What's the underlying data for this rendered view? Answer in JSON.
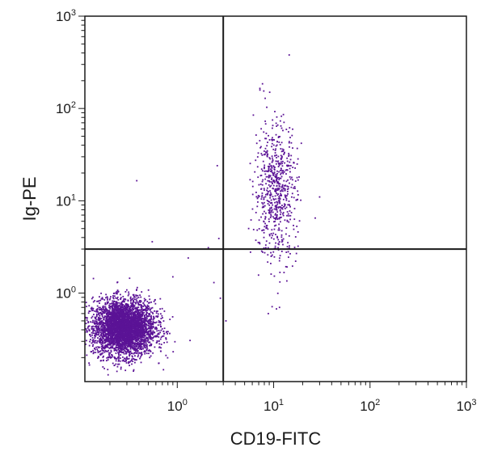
{
  "chart_data": {
    "type": "scatter",
    "title": "",
    "xlabel": "CD19-FITC",
    "ylabel": "Ig-PE",
    "x_scale": "log",
    "y_scale": "log",
    "xlim": [
      0.11,
      1000
    ],
    "ylim": [
      0.11,
      1000
    ],
    "x_ticks": [
      {
        "value": 1,
        "base": "10",
        "exp": "0"
      },
      {
        "value": 10,
        "base": "10",
        "exp": "1"
      },
      {
        "value": 100,
        "base": "10",
        "exp": "2"
      },
      {
        "value": 1000,
        "base": "10",
        "exp": "3"
      }
    ],
    "y_ticks": [
      {
        "value": 1,
        "base": "10",
        "exp": "0"
      },
      {
        "value": 10,
        "base": "10",
        "exp": "1"
      },
      {
        "value": 100,
        "base": "10",
        "exp": "2"
      },
      {
        "value": 1000,
        "base": "10",
        "exp": "3"
      }
    ],
    "quadrant_gates": {
      "x": 3.0,
      "y": 3.0
    },
    "grid": false,
    "legend": "none",
    "point_color": "#5b1396",
    "line_color": "#1a1a1a",
    "populations": [
      {
        "center_x": 0.28,
        "center_y": 0.42,
        "spread_x_log": 0.16,
        "spread_y_log": 0.15,
        "count": 3800
      },
      {
        "center_x": 10.5,
        "center_y": 13.0,
        "spread_x_log": 0.11,
        "spread_y_log": 0.38,
        "count": 650
      }
    ],
    "outliers": [
      {
        "x": 14.5,
        "y": 380
      },
      {
        "x": 7.2,
        "y": 165
      },
      {
        "x": 0.38,
        "y": 16.5
      },
      {
        "x": 2.6,
        "y": 24
      },
      {
        "x": 2.7,
        "y": 3.9
      },
      {
        "x": 2.8,
        "y": 0.88
      },
      {
        "x": 3.2,
        "y": 0.5
      },
      {
        "x": 1.3,
        "y": 2.4
      },
      {
        "x": 2.1,
        "y": 3.1
      },
      {
        "x": 2.4,
        "y": 1.3
      },
      {
        "x": 0.55,
        "y": 3.6
      },
      {
        "x": 0.9,
        "y": 1.5
      },
      {
        "x": 30,
        "y": 11
      },
      {
        "x": 27,
        "y": 6.5
      },
      {
        "x": 8.8,
        "y": 0.6
      },
      {
        "x": 11.5,
        "y": 0.7
      }
    ]
  }
}
